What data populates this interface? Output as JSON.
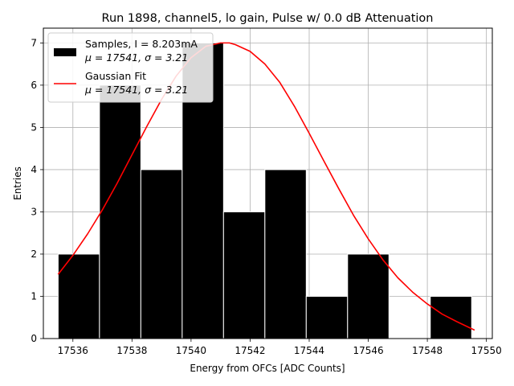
{
  "chart_data": {
    "type": "bar",
    "title": "Run 1898, channel5, lo gain, Pulse w/ 0.0 dB Attenuation",
    "xlabel": "Energy from OFCs [ADC Counts]",
    "ylabel": "Entries",
    "xlim": [
      17535.0,
      17550.2
    ],
    "ylim": [
      0,
      7.35
    ],
    "xticks": [
      17536,
      17538,
      17540,
      17542,
      17544,
      17546,
      17548,
      17550
    ],
    "yticks": [
      0,
      1,
      2,
      3,
      4,
      5,
      6,
      7
    ],
    "grid": true,
    "legend_position": "top-left",
    "series": [
      {
        "name": "Samples, I = 8.203mA",
        "subtitle": "μ = 17541, σ = 3.21",
        "kind": "histogram",
        "color": "#000000",
        "edgecolor": "#ffffff",
        "bins": [
          {
            "x0": 17535.5,
            "x1": 17536.9,
            "value": 2
          },
          {
            "x0": 17536.9,
            "x1": 17538.3,
            "value": 6
          },
          {
            "x0": 17538.3,
            "x1": 17539.7,
            "value": 4
          },
          {
            "x0": 17539.7,
            "x1": 17541.1,
            "value": 7
          },
          {
            "x0": 17541.1,
            "x1": 17542.5,
            "value": 3
          },
          {
            "x0": 17542.5,
            "x1": 17543.9,
            "value": 4
          },
          {
            "x0": 17543.9,
            "x1": 17545.3,
            "value": 1
          },
          {
            "x0": 17545.3,
            "x1": 17546.7,
            "value": 2
          },
          {
            "x0": 17546.7,
            "x1": 17548.1,
            "value": 0
          },
          {
            "x0": 17548.1,
            "x1": 17549.5,
            "value": 1
          }
        ]
      },
      {
        "name": "Gaussian Fit",
        "subtitle": "μ = 17541, σ = 3.21",
        "kind": "line",
        "color": "#ff0000",
        "x": [
          17535.5,
          17536.0,
          17536.5,
          17537.0,
          17537.5,
          17538.0,
          17538.5,
          17539.0,
          17539.5,
          17540.0,
          17540.5,
          17541.0,
          17541.3,
          17541.5,
          17542.0,
          17542.5,
          17543.0,
          17543.5,
          17544.0,
          17544.5,
          17545.0,
          17545.5,
          17546.0,
          17546.5,
          17547.0,
          17547.5,
          17548.0,
          17548.5,
          17549.0,
          17549.6
        ],
        "y": [
          1.52,
          1.97,
          2.48,
          3.05,
          3.68,
          4.35,
          5.02,
          5.66,
          6.22,
          6.65,
          6.92,
          7.0,
          7.0,
          6.96,
          6.8,
          6.5,
          6.07,
          5.5,
          4.86,
          4.2,
          3.55,
          2.92,
          2.36,
          1.86,
          1.44,
          1.1,
          0.82,
          0.58,
          0.4,
          0.2
        ]
      }
    ]
  }
}
